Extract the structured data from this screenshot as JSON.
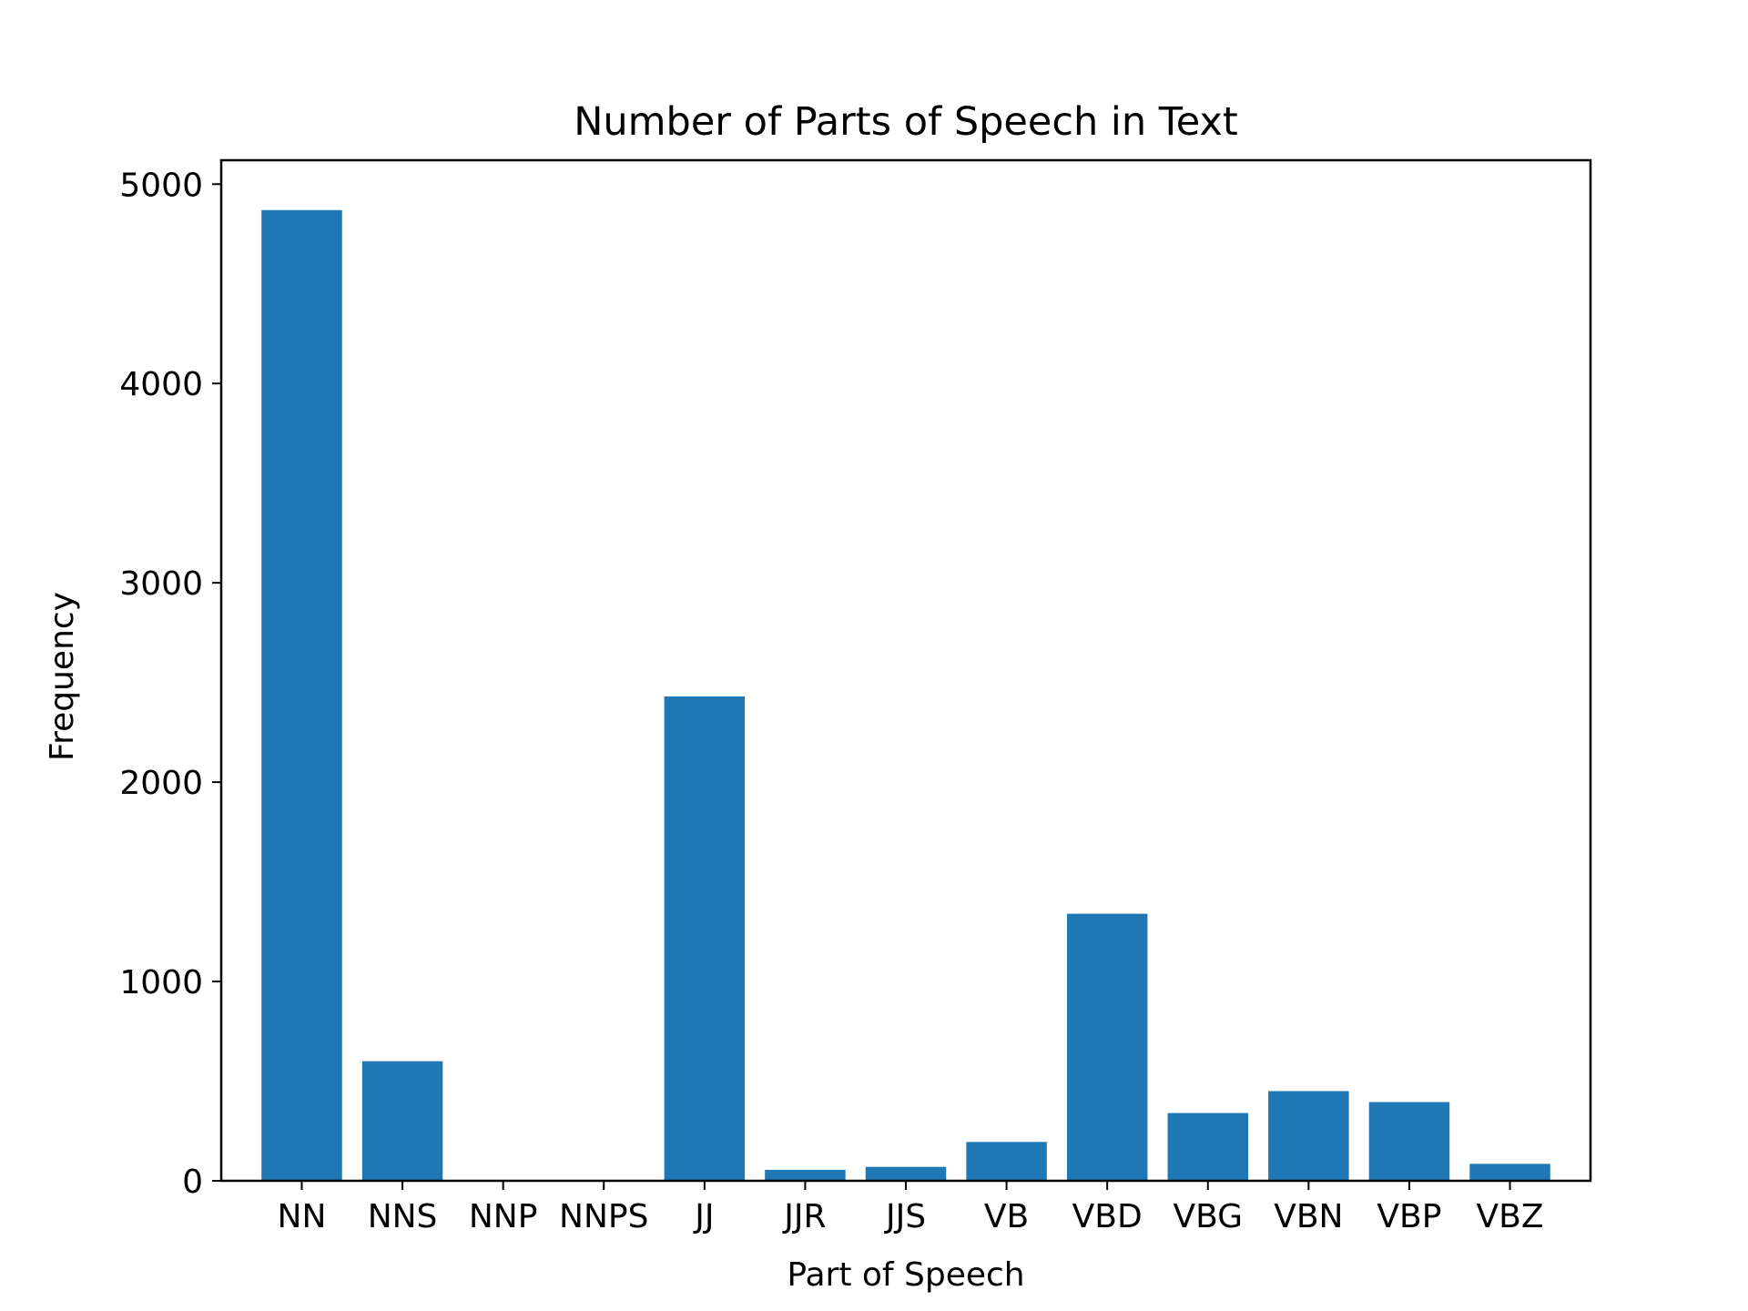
{
  "chart_data": {
    "type": "bar",
    "title": "Number of Parts of Speech in Text",
    "xlabel": "Part of Speech",
    "ylabel": "Frequency",
    "categories": [
      "NN",
      "NNS",
      "NNP",
      "NNPS",
      "JJ",
      "JJR",
      "JJS",
      "VB",
      "VBD",
      "VBG",
      "VBN",
      "VBP",
      "VBZ"
    ],
    "values": [
      4870,
      600,
      0,
      0,
      2430,
      55,
      70,
      195,
      1340,
      340,
      450,
      395,
      85
    ],
    "ylim": [
      0,
      5120
    ],
    "yticks": [
      0,
      1000,
      2000,
      3000,
      4000,
      5000
    ],
    "grid": false,
    "legend": "none",
    "bar_color": "#1f77b4"
  }
}
